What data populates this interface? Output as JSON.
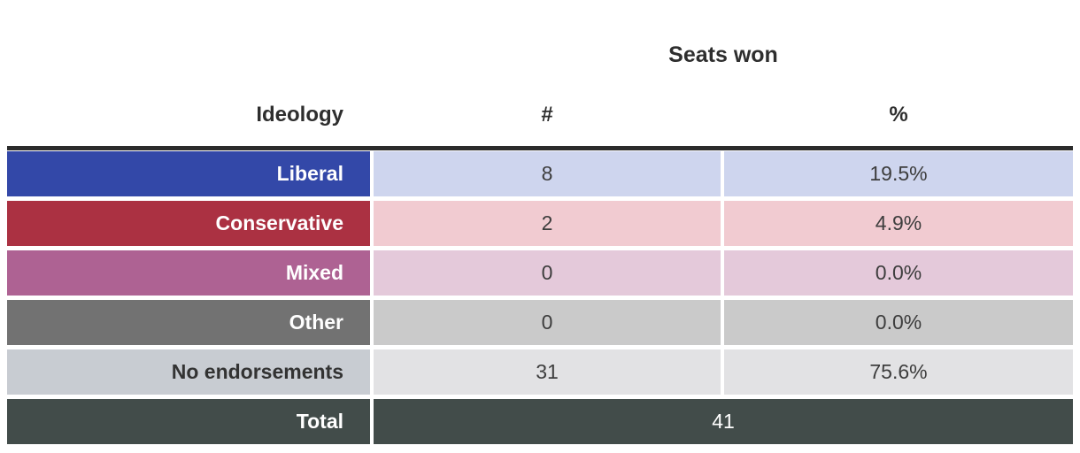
{
  "chart_data": {
    "type": "table",
    "title": "Seats won",
    "columns": [
      "Ideology",
      "#",
      "%"
    ],
    "rows": [
      [
        "Liberal",
        8,
        "19.5%"
      ],
      [
        "Conservative",
        2,
        "4.9%"
      ],
      [
        "Mixed",
        0,
        "0.0%"
      ],
      [
        "Other",
        0,
        "0.0%"
      ],
      [
        "No endorsements",
        31,
        "75.6%"
      ]
    ],
    "total_row": [
      "Total",
      41
    ],
    "layout": "label column color-coded by ideology; # and % grouped under 'Seats won'; total row spans # and % columns"
  },
  "header": {
    "title": "Seats won",
    "columns": {
      "ideology": "Ideology",
      "count": "#",
      "percent": "%"
    }
  },
  "table": {
    "rows": [
      {
        "label": "Liberal",
        "count": "8",
        "percent": "19.5%",
        "label_bg": "#3348a8",
        "label_color": "#ffffff",
        "data_bg": "#ced5ee"
      },
      {
        "label": "Conservative",
        "count": "2",
        "percent": "4.9%",
        "label_bg": "#ab3142",
        "label_color": "#ffffff",
        "data_bg": "#f1cbd1"
      },
      {
        "label": "Mixed",
        "count": "0",
        "percent": "0.0%",
        "label_bg": "#ae6293",
        "label_color": "#ffffff",
        "data_bg": "#e4c9da"
      },
      {
        "label": "Other",
        "count": "0",
        "percent": "0.0%",
        "label_bg": "#727272",
        "label_color": "#ffffff",
        "data_bg": "#cacaca"
      },
      {
        "label": "No endorsements",
        "count": "31",
        "percent": "75.6%",
        "label_bg": "#c8ccd2",
        "label_color": "#333333",
        "data_bg": "#e2e2e4"
      }
    ],
    "total": {
      "label": "Total",
      "value": "41",
      "bg": "#424c4a",
      "color": "#ffffff"
    }
  },
  "colors": {
    "top_border": "#2b2b2b",
    "header_text": "#2e2e2e",
    "data_text": "#3d3d3d",
    "background": "#ffffff"
  }
}
